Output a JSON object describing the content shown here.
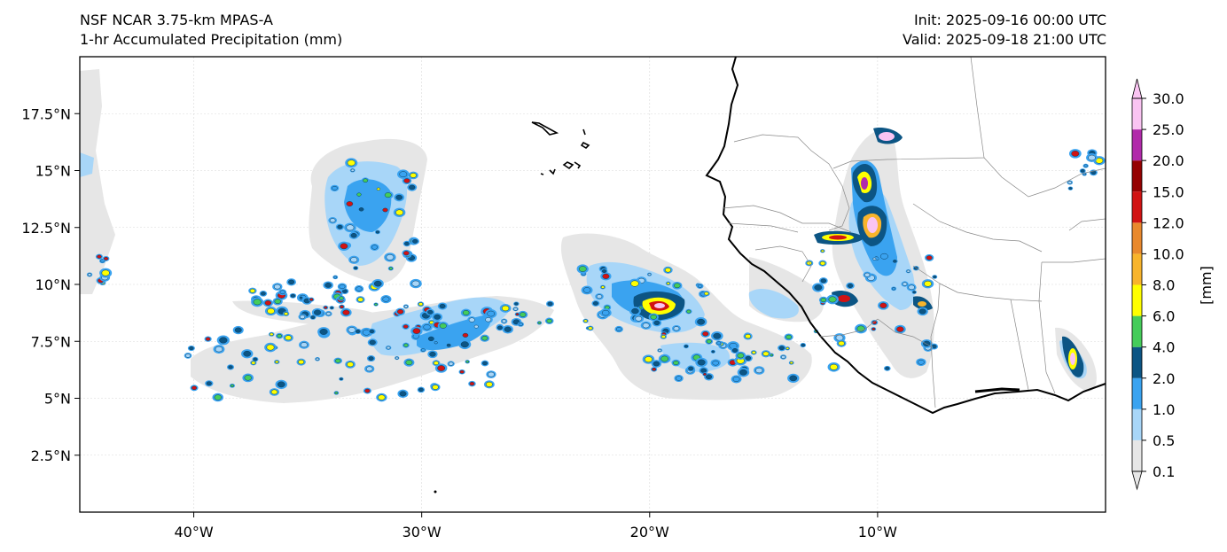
{
  "header": {
    "model": "NSF NCAR 3.75-km MPAS-A",
    "field": "1-hr Accumulated Precipitation (mm)",
    "init": "Init: 2025-09-16 00:00 UTC",
    "valid": "Valid: 2025-09-18 21:00 UTC"
  },
  "map": {
    "extent": {
      "lon": [
        -45,
        0
      ],
      "lat": [
        0,
        20
      ]
    },
    "lat_ticks": [
      {
        "value": 2.5,
        "label": "2.5°N"
      },
      {
        "value": 5,
        "label": "5°N"
      },
      {
        "value": 7.5,
        "label": "7.5°N"
      },
      {
        "value": 10,
        "label": "10°N"
      },
      {
        "value": 12.5,
        "label": "12.5°N"
      },
      {
        "value": 15,
        "label": "15°N"
      },
      {
        "value": 17.5,
        "label": "17.5°N"
      }
    ],
    "lon_ticks": [
      {
        "value": -40,
        "label": "40°W"
      },
      {
        "value": -30,
        "label": "30°W"
      },
      {
        "value": -20,
        "label": "20°W"
      },
      {
        "value": -10,
        "label": "10°W"
      }
    ]
  },
  "colorbar": {
    "unit_label": "[mm]",
    "levels": [
      "0.1",
      "0.5",
      "1.0",
      "2.0",
      "4.0",
      "6.0",
      "8.0",
      "10.0",
      "12.0",
      "15.0",
      "20.0",
      "25.0",
      "30.0"
    ],
    "colors": [
      "#e6e6e6",
      "#a8d6f8",
      "#3aa3f0",
      "#0c5584",
      "#45cc5a",
      "#ffff00",
      "#f8b42c",
      "#e9892d",
      "#d11313",
      "#950202",
      "#b12aaa",
      "#fac4f2"
    ],
    "min_extend_color": "#e6e6e6",
    "max_extend_color": "#fac4f2"
  }
}
